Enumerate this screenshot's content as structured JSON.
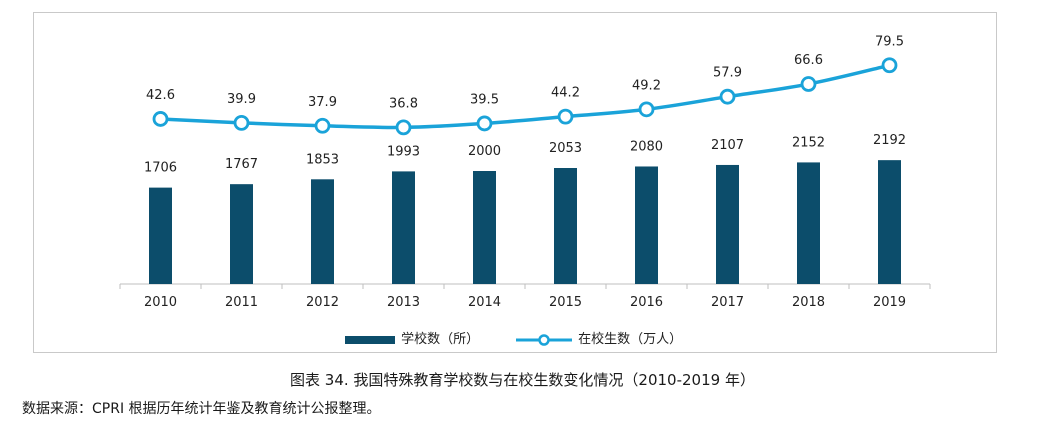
{
  "chart_data": {
    "type": "bar",
    "categories": [
      "2010",
      "2011",
      "2012",
      "2013",
      "2014",
      "2015",
      "2016",
      "2017",
      "2018",
      "2019"
    ],
    "series": [
      {
        "name": "学校数（所）",
        "type": "bar",
        "color": "#0c4d6b",
        "values": [
          1706,
          1767,
          1853,
          1993,
          2000,
          2053,
          2080,
          2107,
          2152,
          2192
        ]
      },
      {
        "name": "在校生数（万人）",
        "type": "line",
        "color": "#1aa3d9",
        "values": [
          42.6,
          39.9,
          37.9,
          36.8,
          39.5,
          44.2,
          49.2,
          57.9,
          66.6,
          79.5
        ]
      }
    ],
    "bar_ylim": [
      0,
      5000
    ],
    "line_ylim": [
      -20,
      90
    ],
    "grid": false,
    "legend_position": "bottom"
  },
  "caption": "图表 34. 我国特殊教育学校数与在校生数变化情况（2010-2019 年）",
  "source": "数据来源：CPRI 根据历年统计年鉴及教育统计公报整理。"
}
